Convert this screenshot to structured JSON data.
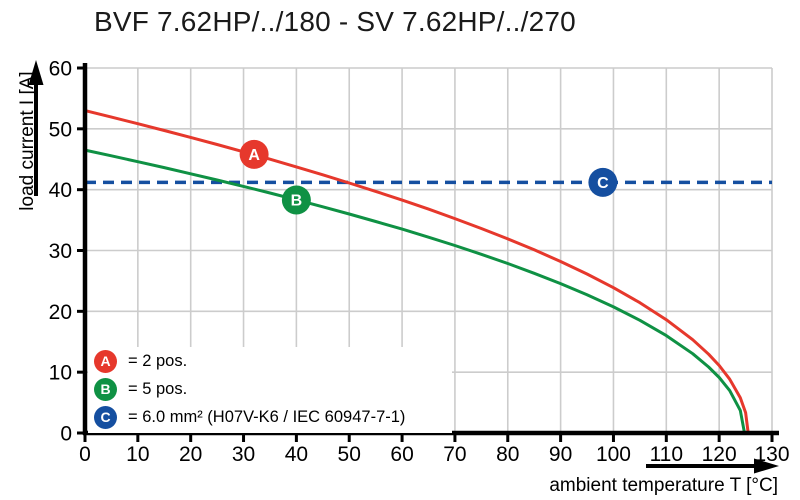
{
  "chart_data": {
    "type": "line",
    "title": "BVF 7.62HP/../180 - SV 7.62HP/../270",
    "xlabel": "ambient temperature T [°C]",
    "ylabel": "load current I [A]",
    "xlim": [
      0,
      130
    ],
    "ylim": [
      0,
      60
    ],
    "xticks": [
      0,
      10,
      20,
      30,
      40,
      50,
      60,
      70,
      80,
      90,
      100,
      110,
      120,
      130
    ],
    "yticks": [
      0,
      10,
      20,
      30,
      40,
      50,
      60
    ],
    "grid": true,
    "legend_position": "bottom-left inside plot",
    "colors": {
      "series_a": "#e6382c",
      "series_b": "#0f9144",
      "series_c": "#154fa0",
      "grid": "#cccccc",
      "axis": "#000000"
    },
    "series": [
      {
        "id": "A",
        "name": "2 pos.",
        "type": "curve",
        "color": "#e6382c",
        "points": [
          [
            0,
            53
          ],
          [
            5,
            51.93
          ],
          [
            10,
            50.84
          ],
          [
            15,
            49.73
          ],
          [
            20,
            48.59
          ],
          [
            25,
            47.43
          ],
          [
            30,
            46.23
          ],
          [
            35,
            45.01
          ],
          [
            40,
            43.75
          ],
          [
            45,
            42.45
          ],
          [
            50,
            41.1
          ],
          [
            55,
            39.72
          ],
          [
            60,
            38.29
          ],
          [
            65,
            36.8
          ],
          [
            70,
            35.24
          ],
          [
            75,
            33.62
          ],
          [
            80,
            31.91
          ],
          [
            85,
            30.11
          ],
          [
            90,
            28.19
          ],
          [
            95,
            26.13
          ],
          [
            100,
            23.89
          ],
          [
            105,
            21.42
          ],
          [
            110,
            18.62
          ],
          [
            115,
            15.33
          ],
          [
            118,
            12.96
          ],
          [
            120,
            11.09
          ],
          [
            122,
            8.85
          ],
          [
            124,
            5.79
          ],
          [
            125,
            3.35
          ],
          [
            125.5,
            0
          ]
        ]
      },
      {
        "id": "B",
        "name": "5 pos.",
        "type": "curve",
        "color": "#0f9144",
        "points": [
          [
            0,
            46.5
          ],
          [
            5,
            45.56
          ],
          [
            10,
            44.6
          ],
          [
            15,
            43.62
          ],
          [
            20,
            42.61
          ],
          [
            25,
            41.59
          ],
          [
            30,
            40.53
          ],
          [
            35,
            39.45
          ],
          [
            40,
            38.33
          ],
          [
            45,
            37.18
          ],
          [
            50,
            36
          ],
          [
            55,
            34.77
          ],
          [
            60,
            33.51
          ],
          [
            65,
            32.19
          ],
          [
            70,
            30.82
          ],
          [
            75,
            29.38
          ],
          [
            80,
            27.86
          ],
          [
            85,
            26.26
          ],
          [
            90,
            24.56
          ],
          [
            95,
            22.72
          ],
          [
            100,
            20.73
          ],
          [
            105,
            18.52
          ],
          [
            110,
            16.01
          ],
          [
            115,
            13.03
          ],
          [
            118,
            10.85
          ],
          [
            120,
            9.12
          ],
          [
            122,
            6.97
          ],
          [
            124,
            3.72
          ],
          [
            124.8,
            0
          ]
        ]
      },
      {
        "id": "C",
        "name": "6.0 mm² (H07V-K6 / IEC 60947-7-1)",
        "type": "hline",
        "style": "dashed",
        "color": "#154fa0",
        "value": 41.2
      }
    ],
    "markers": [
      {
        "letter": "A",
        "x": 32,
        "y": 45.8,
        "color": "#e6382c"
      },
      {
        "letter": "B",
        "x": 40,
        "y": 38.3,
        "color": "#0f9144"
      },
      {
        "letter": "C",
        "x": 98,
        "y": 41.2,
        "color": "#154fa0"
      }
    ],
    "legend": [
      {
        "letter": "A",
        "color": "#e6382c",
        "label": "= 2 pos."
      },
      {
        "letter": "B",
        "color": "#0f9144",
        "label": "= 5 pos."
      },
      {
        "letter": "C",
        "color": "#154fa0",
        "label": "= 6.0 mm² (H07V-K6 / IEC 60947-7-1)"
      }
    ]
  }
}
